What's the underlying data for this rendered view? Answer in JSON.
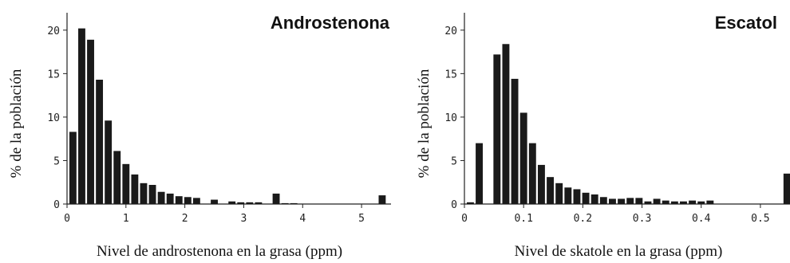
{
  "chart_data": [
    {
      "type": "bar",
      "title": "Androstenona",
      "xlabel": "Nivel de androstenona en la grasa (ppm)",
      "ylabel": "% de la población",
      "xlim": [
        0,
        5.5
      ],
      "ylim": [
        0,
        22
      ],
      "xticks": [
        0,
        1,
        2,
        3,
        4,
        5
      ],
      "xtick_labels": [
        "0",
        "1",
        "2",
        "3",
        "4",
        "5"
      ],
      "yticks": [
        0,
        5,
        10,
        15,
        20
      ],
      "ytick_labels": [
        "0",
        "5",
        "10",
        "15",
        "20"
      ],
      "grid": false,
      "legend": "none",
      "bar_color": "#1a1a1a",
      "bin_width": 0.15,
      "x": [
        0.1,
        0.25,
        0.4,
        0.55,
        0.7,
        0.85,
        1.0,
        1.15,
        1.3,
        1.45,
        1.6,
        1.75,
        1.9,
        2.05,
        2.2,
        2.35,
        2.5,
        2.65,
        2.8,
        2.95,
        3.1,
        3.25,
        3.4,
        3.55,
        3.7,
        3.85,
        4.0,
        4.15,
        4.3,
        4.45,
        4.6,
        4.75,
        4.9,
        5.05,
        5.2,
        5.35
      ],
      "values": [
        8.3,
        20.2,
        18.9,
        14.3,
        9.6,
        6.1,
        4.6,
        3.4,
        2.4,
        2.2,
        1.4,
        1.2,
        0.9,
        0.8,
        0.7,
        0.0,
        0.5,
        0.0,
        0.3,
        0.2,
        0.2,
        0.2,
        0.0,
        1.2,
        0.1,
        0.1,
        0.0,
        0.0,
        0.0,
        0.0,
        0.0,
        0.0,
        0.0,
        0.0,
        0.0,
        1.0
      ]
    },
    {
      "type": "bar",
      "title": "Escatol",
      "xlabel": "Nivel de skatole en la grasa (ppm)",
      "ylabel": "% de la población",
      "xlim": [
        0,
        0.55
      ],
      "ylim": [
        0,
        22
      ],
      "xticks": [
        0,
        0.1,
        0.2,
        0.3,
        0.4,
        0.5
      ],
      "xtick_labels": [
        "0",
        "0.1",
        "0.2",
        "0.3",
        "0.4",
        "0.5"
      ],
      "yticks": [
        0,
        5,
        10,
        15,
        20
      ],
      "ytick_labels": [
        "0",
        "5",
        "10",
        "15",
        "20"
      ],
      "grid": false,
      "legend": "none",
      "bar_color": "#1a1a1a",
      "bin_width": 0.015,
      "x": [
        0.01,
        0.025,
        0.04,
        0.055,
        0.07,
        0.085,
        0.1,
        0.115,
        0.13,
        0.145,
        0.16,
        0.175,
        0.19,
        0.205,
        0.22,
        0.235,
        0.25,
        0.265,
        0.28,
        0.295,
        0.31,
        0.325,
        0.34,
        0.355,
        0.37,
        0.385,
        0.4,
        0.415,
        0.43,
        0.445,
        0.46,
        0.475,
        0.49,
        0.505,
        0.52,
        0.545
      ],
      "values": [
        0.2,
        7.0,
        0.0,
        17.2,
        18.4,
        14.4,
        10.5,
        7.0,
        4.5,
        3.1,
        2.4,
        1.9,
        1.7,
        1.3,
        1.1,
        0.8,
        0.6,
        0.6,
        0.7,
        0.7,
        0.3,
        0.6,
        0.4,
        0.3,
        0.3,
        0.4,
        0.3,
        0.4,
        0.0,
        0.0,
        0.0,
        0.0,
        0.0,
        0.0,
        0.0,
        3.5
      ]
    }
  ]
}
